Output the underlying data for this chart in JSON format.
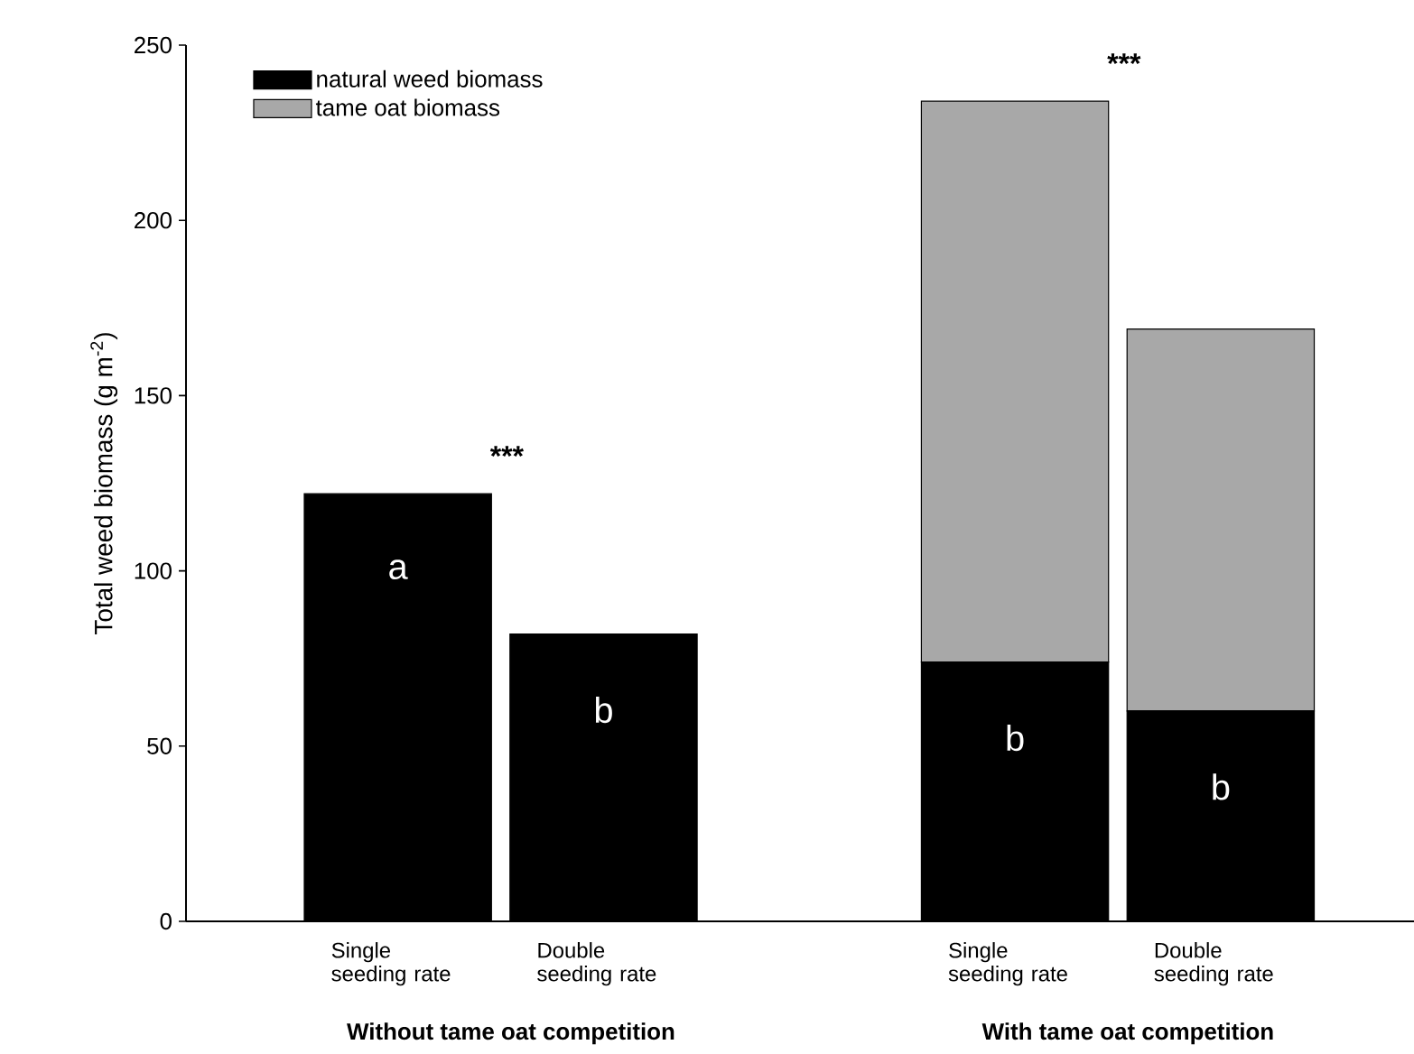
{
  "chart_data": {
    "type": "bar",
    "stacked": true,
    "ylabel": "Total weed biomass (g m$^{-2}$)",
    "categories": [
      "Single seeding rate",
      "Double seeding rate",
      null,
      "Single seeding rate",
      "Double seeding rate"
    ],
    "series": [
      {
        "name": "natural weed biomass",
        "color": "#000000",
        "values": [
          122,
          82,
          null,
          74,
          60
        ]
      },
      {
        "name": "tame oat biomass",
        "color": "#a8a8a8",
        "values": [
          null,
          null,
          null,
          160,
          109
        ]
      }
    ],
    "ylim": [
      0,
      250
    ],
    "yticks": [
      0,
      50,
      100,
      150,
      200,
      250
    ],
    "legend": "top left",
    "grid": false,
    "annotations": [
      "***",
      "***",
      "a",
      "b",
      "b",
      "b",
      "Without tame oat competition",
      "With tame oat competition"
    ]
  }
}
